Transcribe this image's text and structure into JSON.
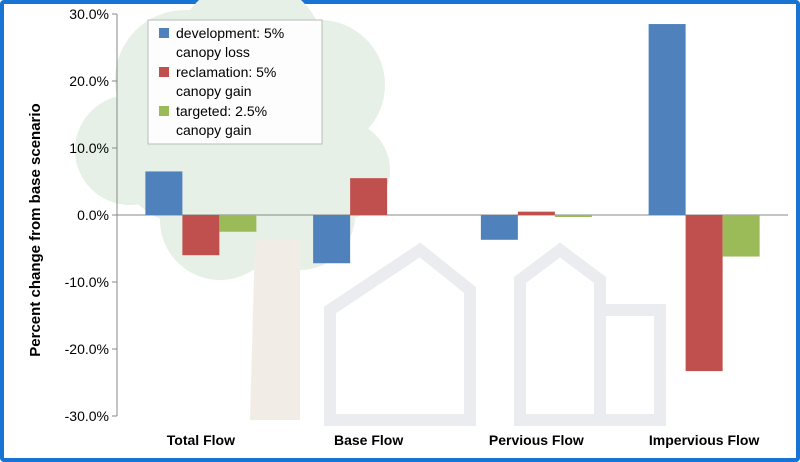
{
  "chart_data": {
    "type": "bar",
    "title": "",
    "xlabel": "",
    "ylabel": "Percent change from base scenario",
    "ylim": [
      -30,
      30
    ],
    "yticks": [
      "30.0%",
      "20.0%",
      "10.0%",
      "0.0%",
      "-10.0%",
      "-20.0%",
      "-30.0%"
    ],
    "categories": [
      "Total Flow",
      "Base Flow",
      "Pervious Flow",
      "Impervious Flow"
    ],
    "legend_position": "top-left",
    "grid": false,
    "series": [
      {
        "name_lines": [
          "development: 5%",
          "canopy loss"
        ],
        "color": "#4f81bd",
        "values": [
          6.5,
          -7.2,
          -3.7,
          28.5
        ]
      },
      {
        "name_lines": [
          "reclamation: 5%",
          "canopy gain"
        ],
        "color": "#c0504d",
        "values": [
          -6.0,
          5.5,
          0.5,
          -23.3
        ]
      },
      {
        "name_lines": [
          "targeted: 2.5%",
          "canopy gain"
        ],
        "color": "#9bbb59",
        "values": [
          -2.5,
          0.0,
          -0.3,
          -6.2
        ]
      }
    ]
  },
  "background_illustration": {
    "colors": {
      "tree": "#e6f0e6",
      "trunk": "#f2ece7",
      "house": "#ebecef"
    }
  }
}
